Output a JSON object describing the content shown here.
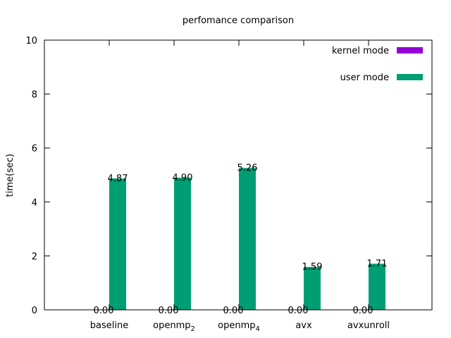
{
  "chart_data": {
    "type": "bar",
    "title": "perfomance comparison",
    "xlabel": "",
    "ylabel": "time(sec)",
    "ylim": [
      0,
      10
    ],
    "yticks": [
      "0",
      "2",
      "4",
      "6",
      "8",
      "10"
    ],
    "categories": [
      {
        "base": "baseline",
        "sub": ""
      },
      {
        "base": "openmp",
        "sub": "2"
      },
      {
        "base": "openmp",
        "sub": "4"
      },
      {
        "base": "avx",
        "sub": ""
      },
      {
        "base": "avxunroll",
        "sub": ""
      }
    ],
    "series": [
      {
        "name": "kernel mode",
        "color": "#9400d3",
        "values": [
          0.0,
          0.0,
          0.0,
          0.0,
          0.0
        ],
        "labels": [
          "0.00",
          "0.00",
          "0.00",
          "0.00",
          "0.00"
        ]
      },
      {
        "name": "user mode",
        "color": "#009e73",
        "values": [
          4.87,
          4.9,
          5.26,
          1.59,
          1.71
        ],
        "labels": [
          "4.87",
          "4.90",
          "5.26",
          "1.59",
          "1.71"
        ]
      }
    ],
    "legend": "top-right",
    "grid": false
  }
}
